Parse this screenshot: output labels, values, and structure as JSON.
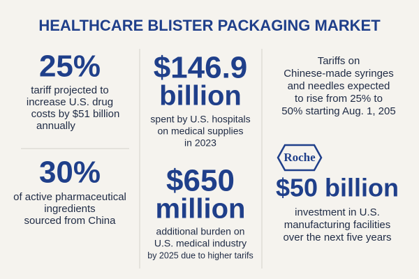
{
  "title": "HEALTHCARE BLISTER PACKAGING MARKET",
  "left": [
    {
      "figure": "25%",
      "text": [
        "tariff projected to",
        "increase U.S. drug",
        "costs by $51 billion",
        "annually"
      ]
    },
    {
      "figure": "30%",
      "text": [
        "of active pharmaceutical",
        "ingredients",
        "sourced from China"
      ]
    }
  ],
  "middle": [
    {
      "figure": [
        "$146.9",
        "billion"
      ],
      "text": [
        "spent by U.S. hospitals",
        "on medical supplies",
        "in 2023"
      ]
    },
    {
      "figure": [
        "$650",
        "million"
      ],
      "text": [
        "additional burden on",
        "U.S. medical industry",
        "by 2025 due to higher tarifs"
      ]
    }
  ],
  "right": {
    "note": [
      "Tariffs on",
      "Chinese-made syringes",
      "and needles expected",
      "to rise from 25% to",
      "50% starting Aug. 1, 205"
    ],
    "logo": "Roche",
    "figure": "$50 billion",
    "text": [
      "investment in U.S.",
      "manufacturing facilities",
      "over the next five years"
    ]
  }
}
